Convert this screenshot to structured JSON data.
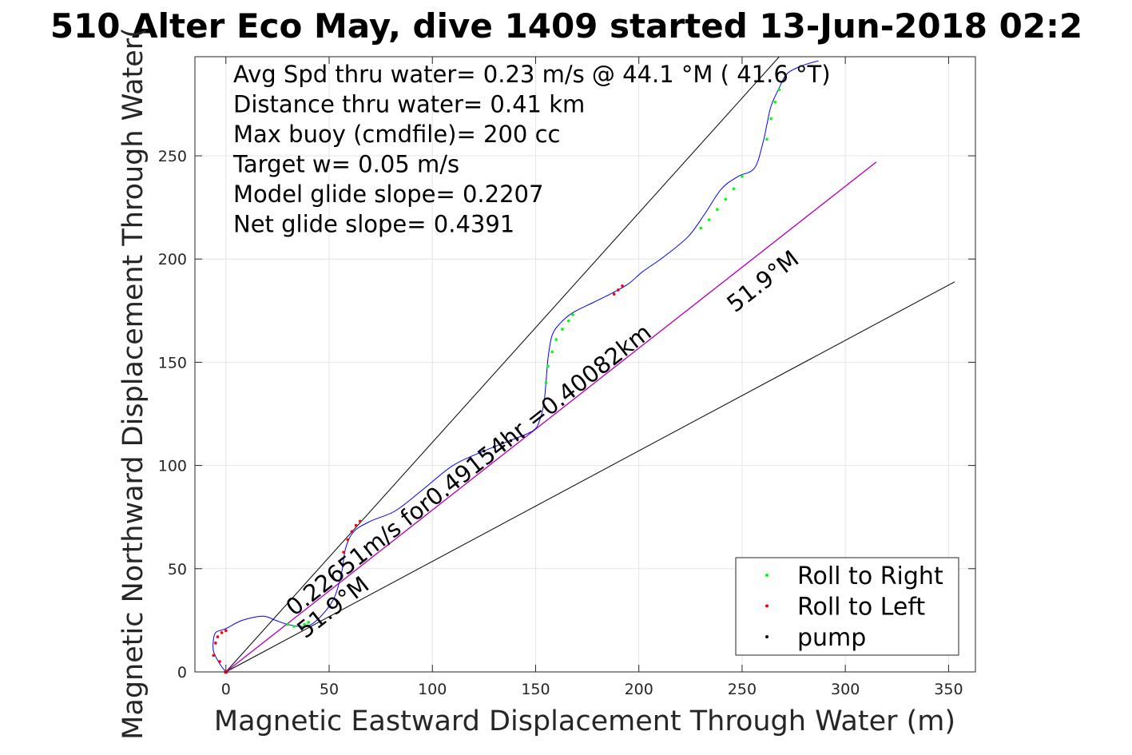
{
  "chart_data": {
    "type": "scatter",
    "title": "510 Alter Eco May, dive 1409 started 13-Jun-2018 02:2",
    "xlabel": "Magnetic Eastward Displacement Through Water (m)",
    "ylabel": "Magnetic Northward Displacement Through Water(",
    "xlim": [
      -15,
      363
    ],
    "ylim": [
      0,
      298
    ],
    "xticks": [
      0,
      50,
      100,
      150,
      200,
      250,
      300,
      350
    ],
    "yticks": [
      0,
      50,
      100,
      150,
      200,
      250
    ],
    "grid": true,
    "stats": [
      "Avg Spd thru water=  0.23 m/s @  44.1 °M ( 41.6 °T)",
      "Distance thru water=  0.41 km",
      "Max buoy (cmdfile)= 200 cc",
      "Target w= 0.05 m/s",
      "Model glide slope= 0.2207",
      "Net glide slope= 0.4391"
    ],
    "annotations": {
      "rate_label": "0.22651m/s for0.49154hr =0.40082km",
      "heading_top": "51.9°M",
      "heading_bottom": "51.9°M"
    },
    "reference_lines": [
      {
        "name": "upper-heading-line",
        "from": [
          0,
          0
        ],
        "to": [
          268,
          298
        ],
        "color": "#000000"
      },
      {
        "name": "target-heading-line",
        "from": [
          0,
          0
        ],
        "to": [
          315,
          247
        ],
        "color": "#000000"
      },
      {
        "name": "lower-heading-line",
        "from": [
          0,
          0
        ],
        "to": [
          353,
          189
        ],
        "color": "#000000"
      },
      {
        "name": "net-heading-line",
        "from": [
          0,
          0
        ],
        "to": [
          315,
          247
        ],
        "color": "#c000c0"
      }
    ],
    "track": {
      "name": "glider-track",
      "color": "#0000ff",
      "x": [
        0,
        -3,
        -6,
        -6,
        -5,
        -3,
        0,
        8,
        18,
        24,
        30,
        38,
        44,
        52,
        56,
        58,
        62,
        70,
        82,
        95,
        110,
        125,
        140,
        149,
        152,
        154,
        155,
        156,
        158,
        162,
        168,
        178,
        188,
        195,
        202,
        212,
        224,
        232,
        240,
        248,
        256,
        260,
        262,
        264,
        268,
        272,
        280,
        287
      ],
      "y": [
        0,
        4,
        10,
        16,
        19,
        20,
        21,
        25,
        27,
        25,
        23,
        22,
        25,
        35,
        48,
        60,
        68,
        73,
        78,
        88,
        100,
        107,
        113,
        117,
        122,
        130,
        140,
        152,
        163,
        169,
        174,
        179,
        184,
        188,
        194,
        201,
        211,
        222,
        234,
        240,
        244,
        256,
        265,
        274,
        283,
        290,
        294,
        296
      ]
    },
    "series": [
      {
        "name": "Roll to Right",
        "color": "#00ff00",
        "x": [
          30,
          33,
          36,
          38,
          40,
          155,
          156,
          158,
          160,
          163,
          166,
          168,
          230,
          234,
          238,
          242,
          246,
          250,
          262,
          264,
          266,
          268
        ],
        "y": [
          23,
          22,
          22,
          23,
          24,
          140,
          148,
          155,
          161,
          166,
          170,
          173,
          215,
          219,
          224,
          229,
          234,
          240,
          258,
          268,
          276,
          282
        ]
      },
      {
        "name": "Roll to Left",
        "color": "#ff0000",
        "x": [
          -6,
          -5,
          -4,
          -2,
          0,
          -3,
          57,
          59,
          61,
          63,
          65,
          188,
          190,
          192
        ],
        "y": [
          8,
          14,
          17,
          19,
          20,
          5,
          58,
          64,
          68,
          71,
          73,
          183,
          185,
          187
        ],
        "marker_color": "#ff0000"
      },
      {
        "name": "pump",
        "color": "#000000",
        "x": [
          125,
          130,
          134,
          138,
          141,
          144
        ],
        "y": [
          107,
          109,
          111,
          112,
          113,
          114
        ]
      }
    ],
    "legend": {
      "position": "bottom-right",
      "entries": [
        "Roll to Right",
        "Roll to Left",
        "pump"
      ]
    }
  }
}
